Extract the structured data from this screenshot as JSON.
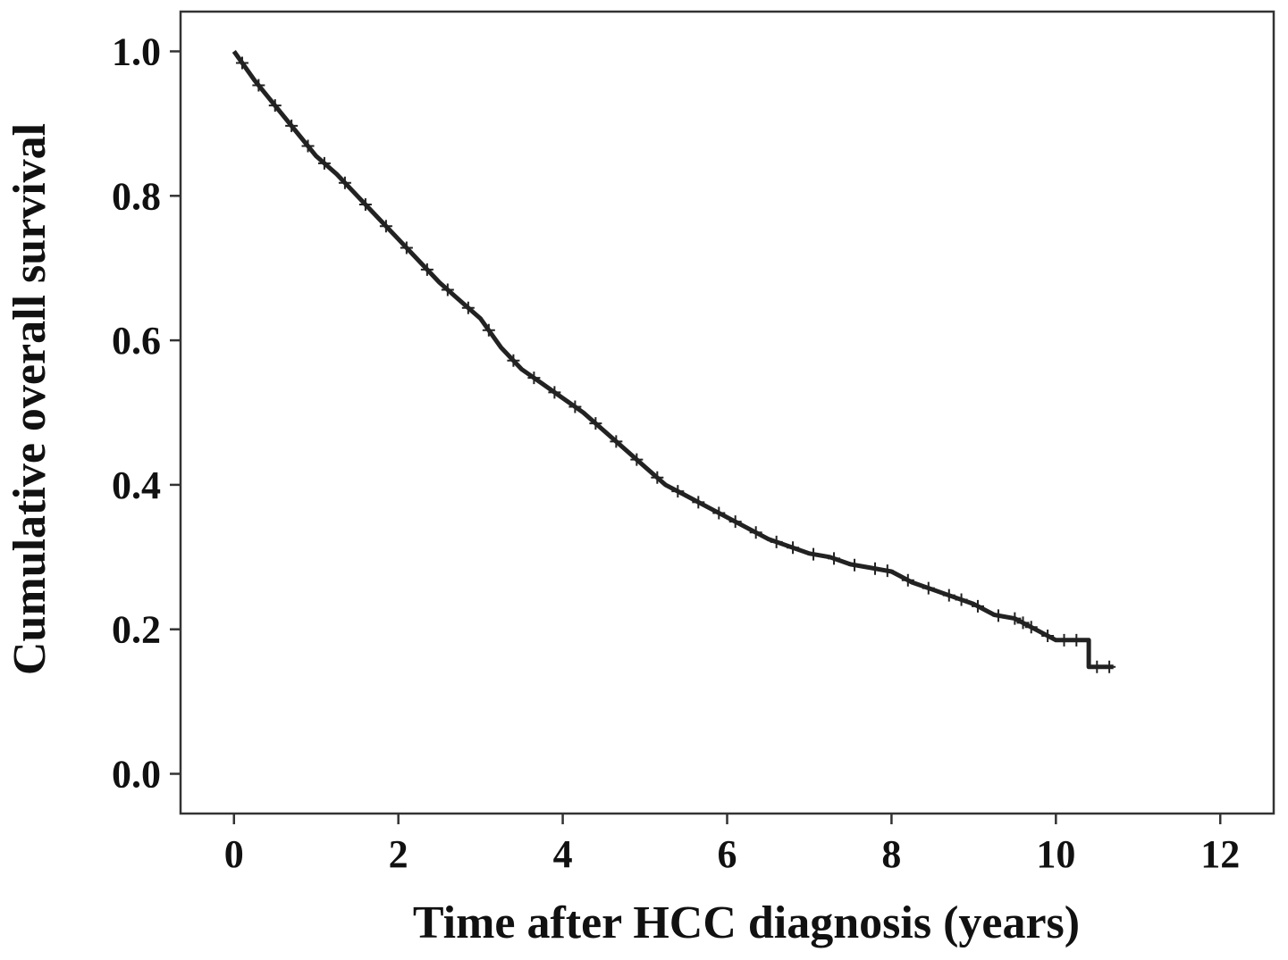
{
  "chart_data": {
    "type": "line",
    "subtype": "kaplan-meier",
    "title": "",
    "xlabel": "Time after HCC diagnosis (years)",
    "ylabel": "Cumulative overall survival",
    "xlim": [
      -0.65,
      12.65
    ],
    "ylim": [
      -0.055,
      1.055
    ],
    "x_ticks": [
      0,
      2,
      4,
      6,
      8,
      10,
      12
    ],
    "y_ticks": [
      0.0,
      0.2,
      0.4,
      0.6,
      0.8,
      1.0
    ],
    "x_tick_labels": [
      "0",
      "2",
      "4",
      "6",
      "8",
      "10",
      "12"
    ],
    "y_tick_labels": [
      "0.0",
      "0.2",
      "0.4",
      "0.6",
      "0.8",
      "1.0"
    ],
    "grid": false,
    "legend": "none",
    "line_color": "#222222",
    "series": [
      {
        "x": [
          0,
          0.25,
          0.5,
          0.75,
          1.0,
          1.25,
          1.5,
          1.75,
          2.0,
          2.25,
          2.5,
          2.75,
          3.0,
          3.25,
          3.5,
          3.75,
          4.0,
          4.25,
          4.5,
          4.75,
          5.0,
          5.25,
          5.5,
          5.75,
          6.0,
          6.25,
          6.5,
          6.75,
          7.0,
          7.25,
          7.5,
          7.75,
          8.0,
          8.25,
          8.5,
          8.75,
          9.0,
          9.25,
          9.5,
          9.75,
          10.0,
          10.4,
          10.4,
          10.7
        ],
        "y": [
          1.0,
          0.96,
          0.925,
          0.89,
          0.855,
          0.83,
          0.8,
          0.77,
          0.74,
          0.71,
          0.68,
          0.655,
          0.63,
          0.59,
          0.56,
          0.54,
          0.52,
          0.5,
          0.475,
          0.45,
          0.425,
          0.4,
          0.385,
          0.37,
          0.355,
          0.34,
          0.325,
          0.315,
          0.305,
          0.3,
          0.29,
          0.285,
          0.28,
          0.265,
          0.255,
          0.245,
          0.235,
          0.22,
          0.215,
          0.2,
          0.185,
          0.185,
          0.148,
          0.148
        ]
      }
    ],
    "censor_marks_x": [
      0.1,
      0.3,
      0.5,
      0.7,
      0.9,
      1.1,
      1.35,
      1.6,
      1.85,
      2.1,
      2.35,
      2.6,
      2.85,
      3.1,
      3.4,
      3.65,
      3.9,
      4.15,
      4.4,
      4.65,
      4.9,
      5.15,
      5.4,
      5.65,
      5.9,
      6.1,
      6.35,
      6.6,
      6.8,
      7.05,
      7.3,
      7.55,
      7.8,
      7.95,
      8.2,
      8.45,
      8.7,
      8.85,
      9.05,
      9.3,
      9.5,
      9.6,
      9.7,
      9.9,
      10.1,
      10.25,
      10.5,
      10.65
    ]
  }
}
